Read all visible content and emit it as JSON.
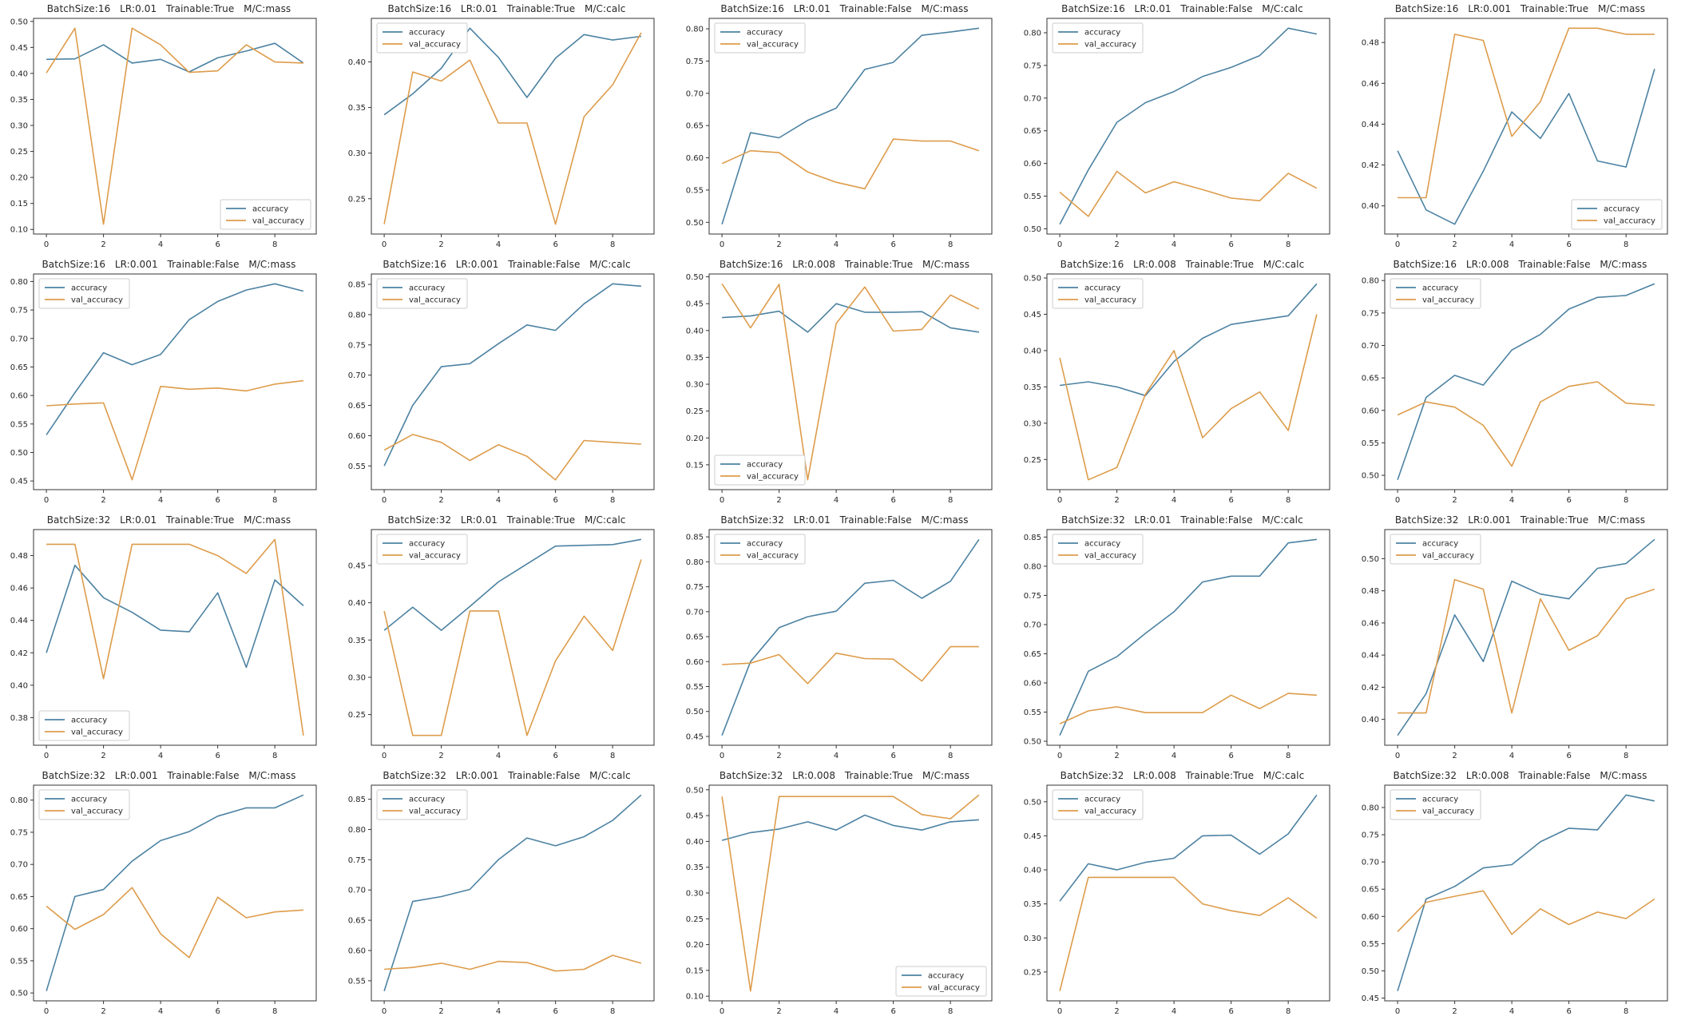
{
  "figure": {
    "legend_labels": [
      "accuracy",
      "val_accuracy"
    ],
    "colors": {
      "accuracy": "#4c82a2",
      "val_accuracy": "#dd9c4b",
      "spine": "#333333"
    },
    "x_ticks": [
      0,
      2,
      4,
      6,
      8
    ]
  },
  "chart_data": [
    {
      "type": "line",
      "title": "BatchSize:16   LR:0.01   Trainable:True   M/C:mass",
      "legend": "lower-right",
      "x": [
        0,
        1,
        2,
        3,
        4,
        5,
        6,
        7,
        8,
        9
      ],
      "yticks": [
        0.1,
        0.15,
        0.2,
        0.25,
        0.3,
        0.35,
        0.4,
        0.45,
        0.5
      ],
      "series": [
        {
          "name": "accuracy",
          "values": [
            0.427,
            0.428,
            0.455,
            0.42,
            0.427,
            0.403,
            0.43,
            0.443,
            0.458,
            0.42
          ]
        },
        {
          "name": "val_accuracy",
          "values": [
            0.401,
            0.487,
            0.11,
            0.487,
            0.455,
            0.402,
            0.405,
            0.455,
            0.422,
            0.42
          ]
        }
      ]
    },
    {
      "type": "line",
      "title": "BatchSize:16   LR:0.01   Trainable:True   M/C:calc",
      "legend": "upper-left",
      "x": [
        0,
        1,
        2,
        3,
        4,
        5,
        6,
        7,
        8,
        9
      ],
      "yticks": [
        0.25,
        0.3,
        0.35,
        0.4
      ],
      "series": [
        {
          "name": "accuracy",
          "values": [
            0.342,
            0.365,
            0.393,
            0.437,
            0.405,
            0.361,
            0.404,
            0.43,
            0.424,
            0.428
          ]
        },
        {
          "name": "val_accuracy",
          "values": [
            0.222,
            0.389,
            0.379,
            0.402,
            0.333,
            0.333,
            0.222,
            0.34,
            0.375,
            0.432
          ]
        }
      ]
    },
    {
      "type": "line",
      "title": "BatchSize:16   LR:0.01   Trainable:False   M/C:mass",
      "legend": "upper-left",
      "x": [
        0,
        1,
        2,
        3,
        4,
        5,
        6,
        7,
        8,
        9
      ],
      "yticks": [
        0.5,
        0.55,
        0.6,
        0.65,
        0.7,
        0.75,
        0.8
      ],
      "series": [
        {
          "name": "accuracy",
          "values": [
            0.497,
            0.639,
            0.631,
            0.658,
            0.677,
            0.737,
            0.748,
            0.79,
            0.795,
            0.801
          ]
        },
        {
          "name": "val_accuracy",
          "values": [
            0.591,
            0.611,
            0.608,
            0.578,
            0.562,
            0.552,
            0.629,
            0.626,
            0.626,
            0.611
          ]
        }
      ]
    },
    {
      "type": "line",
      "title": "BatchSize:16   LR:0.01   Trainable:False   M/C:calc",
      "legend": "upper-left",
      "x": [
        0,
        1,
        2,
        3,
        4,
        5,
        6,
        7,
        8,
        9
      ],
      "yticks": [
        0.5,
        0.55,
        0.6,
        0.65,
        0.7,
        0.75,
        0.8
      ],
      "series": [
        {
          "name": "accuracy",
          "values": [
            0.507,
            0.59,
            0.663,
            0.693,
            0.71,
            0.733,
            0.747,
            0.765,
            0.807,
            0.798
          ]
        },
        {
          "name": "val_accuracy",
          "values": [
            0.556,
            0.519,
            0.588,
            0.555,
            0.572,
            0.56,
            0.547,
            0.543,
            0.585,
            0.562
          ]
        }
      ]
    },
    {
      "type": "line",
      "title": "BatchSize:16   LR:0.001   Trainable:True   M/C:mass",
      "legend": "lower-right",
      "x": [
        0,
        1,
        2,
        3,
        4,
        5,
        6,
        7,
        8,
        9
      ],
      "yticks": [
        0.4,
        0.42,
        0.44,
        0.46,
        0.48
      ],
      "series": [
        {
          "name": "accuracy",
          "values": [
            0.427,
            0.398,
            0.391,
            0.417,
            0.446,
            0.433,
            0.455,
            0.422,
            0.419,
            0.467
          ]
        },
        {
          "name": "val_accuracy",
          "values": [
            0.404,
            0.404,
            0.484,
            0.481,
            0.434,
            0.451,
            0.487,
            0.487,
            0.484,
            0.484
          ]
        }
      ]
    },
    {
      "type": "line",
      "title": "BatchSize:16   LR:0.001   Trainable:False   M/C:mass",
      "legend": "upper-left",
      "x": [
        0,
        1,
        2,
        3,
        4,
        5,
        6,
        7,
        8,
        9
      ],
      "yticks": [
        0.45,
        0.5,
        0.55,
        0.6,
        0.65,
        0.7,
        0.75,
        0.8
      ],
      "series": [
        {
          "name": "accuracy",
          "values": [
            0.531,
            0.605,
            0.675,
            0.654,
            0.672,
            0.733,
            0.765,
            0.785,
            0.796,
            0.783
          ]
        },
        {
          "name": "val_accuracy",
          "values": [
            0.582,
            0.585,
            0.587,
            0.452,
            0.616,
            0.611,
            0.613,
            0.608,
            0.62,
            0.626
          ]
        }
      ]
    },
    {
      "type": "line",
      "title": "BatchSize:16   LR:0.001   Trainable:False   M/C:calc",
      "legend": "upper-left",
      "x": [
        0,
        1,
        2,
        3,
        4,
        5,
        6,
        7,
        8,
        9
      ],
      "yticks": [
        0.55,
        0.6,
        0.65,
        0.7,
        0.75,
        0.8,
        0.85
      ],
      "series": [
        {
          "name": "accuracy",
          "values": [
            0.55,
            0.65,
            0.714,
            0.719,
            0.752,
            0.783,
            0.774,
            0.818,
            0.851,
            0.847
          ]
        },
        {
          "name": "val_accuracy",
          "values": [
            0.576,
            0.602,
            0.589,
            0.559,
            0.585,
            0.566,
            0.527,
            0.592,
            0.589,
            0.586
          ]
        }
      ]
    },
    {
      "type": "line",
      "title": "BatchSize:16   LR:0.008   Trainable:True   M/C:mass",
      "legend": "lower-left",
      "x": [
        0,
        1,
        2,
        3,
        4,
        5,
        6,
        7,
        8,
        9
      ],
      "yticks": [
        0.15,
        0.2,
        0.25,
        0.3,
        0.35,
        0.4,
        0.45,
        0.5
      ],
      "series": [
        {
          "name": "accuracy",
          "values": [
            0.424,
            0.427,
            0.436,
            0.397,
            0.45,
            0.434,
            0.434,
            0.435,
            0.405,
            0.397
          ]
        },
        {
          "name": "val_accuracy",
          "values": [
            0.487,
            0.405,
            0.486,
            0.122,
            0.413,
            0.481,
            0.399,
            0.402,
            0.466,
            0.44
          ]
        }
      ]
    },
    {
      "type": "line",
      "title": "BatchSize:16   LR:0.008   Trainable:True   M/C:calc",
      "legend": "upper-left",
      "x": [
        0,
        1,
        2,
        3,
        4,
        5,
        6,
        7,
        8,
        9
      ],
      "yticks": [
        0.25,
        0.3,
        0.35,
        0.4,
        0.45,
        0.5
      ],
      "series": [
        {
          "name": "accuracy",
          "values": [
            0.352,
            0.357,
            0.35,
            0.338,
            0.385,
            0.417,
            0.436,
            0.442,
            0.448,
            0.492
          ]
        },
        {
          "name": "val_accuracy",
          "values": [
            0.39,
            0.222,
            0.239,
            0.34,
            0.4,
            0.28,
            0.32,
            0.343,
            0.29,
            0.45
          ]
        }
      ]
    },
    {
      "type": "line",
      "title": "BatchSize:16   LR:0.008   Trainable:False   M/C:mass",
      "legend": "upper-left",
      "x": [
        0,
        1,
        2,
        3,
        4,
        5,
        6,
        7,
        8,
        9
      ],
      "yticks": [
        0.5,
        0.55,
        0.6,
        0.65,
        0.7,
        0.75,
        0.8
      ],
      "series": [
        {
          "name": "accuracy",
          "values": [
            0.493,
            0.62,
            0.654,
            0.639,
            0.693,
            0.717,
            0.756,
            0.774,
            0.777,
            0.795
          ]
        },
        {
          "name": "val_accuracy",
          "values": [
            0.593,
            0.613,
            0.605,
            0.577,
            0.514,
            0.613,
            0.637,
            0.644,
            0.611,
            0.608
          ]
        }
      ]
    },
    {
      "type": "line",
      "title": "BatchSize:32   LR:0.01   Trainable:True   M/C:mass",
      "legend": "lower-left",
      "x": [
        0,
        1,
        2,
        3,
        4,
        5,
        6,
        7,
        8,
        9
      ],
      "yticks": [
        0.38,
        0.4,
        0.42,
        0.44,
        0.46,
        0.48
      ],
      "series": [
        {
          "name": "accuracy",
          "values": [
            0.42,
            0.474,
            0.454,
            0.445,
            0.434,
            0.433,
            0.457,
            0.411,
            0.465,
            0.449
          ]
        },
        {
          "name": "val_accuracy",
          "values": [
            0.487,
            0.487,
            0.404,
            0.487,
            0.487,
            0.487,
            0.48,
            0.469,
            0.49,
            0.369
          ]
        }
      ]
    },
    {
      "type": "line",
      "title": "BatchSize:32   LR:0.01   Trainable:True   M/C:calc",
      "legend": "upper-left",
      "x": [
        0,
        1,
        2,
        3,
        4,
        5,
        6,
        7,
        8,
        9
      ],
      "yticks": [
        0.25,
        0.3,
        0.35,
        0.4,
        0.45
      ],
      "series": [
        {
          "name": "accuracy",
          "values": [
            0.363,
            0.394,
            0.363,
            0.395,
            0.428,
            0.452,
            0.476,
            0.477,
            0.478,
            0.485
          ]
        },
        {
          "name": "val_accuracy",
          "values": [
            0.389,
            0.222,
            0.222,
            0.389,
            0.389,
            0.222,
            0.322,
            0.382,
            0.336,
            0.458
          ]
        }
      ]
    },
    {
      "type": "line",
      "title": "BatchSize:32   LR:0.01   Trainable:False   M/C:mass",
      "legend": "upper-left",
      "x": [
        0,
        1,
        2,
        3,
        4,
        5,
        6,
        7,
        8,
        9
      ],
      "yticks": [
        0.45,
        0.5,
        0.55,
        0.6,
        0.65,
        0.7,
        0.75,
        0.8,
        0.85
      ],
      "series": [
        {
          "name": "accuracy",
          "values": [
            0.452,
            0.6,
            0.668,
            0.69,
            0.701,
            0.757,
            0.763,
            0.727,
            0.761,
            0.845
          ]
        },
        {
          "name": "val_accuracy",
          "values": [
            0.594,
            0.597,
            0.614,
            0.556,
            0.617,
            0.606,
            0.605,
            0.561,
            0.63,
            0.63
          ]
        }
      ]
    },
    {
      "type": "line",
      "title": "BatchSize:32   LR:0.01   Trainable:False   M/C:calc",
      "legend": "upper-left",
      "x": [
        0,
        1,
        2,
        3,
        4,
        5,
        6,
        7,
        8,
        9
      ],
      "yticks": [
        0.5,
        0.55,
        0.6,
        0.65,
        0.7,
        0.75,
        0.8,
        0.85
      ],
      "series": [
        {
          "name": "accuracy",
          "values": [
            0.51,
            0.62,
            0.645,
            0.685,
            0.722,
            0.773,
            0.783,
            0.783,
            0.84,
            0.846
          ]
        },
        {
          "name": "val_accuracy",
          "values": [
            0.53,
            0.552,
            0.559,
            0.549,
            0.549,
            0.549,
            0.579,
            0.556,
            0.582,
            0.579
          ]
        }
      ]
    },
    {
      "type": "line",
      "title": "BatchSize:32   LR:0.001   Trainable:True   M/C:mass",
      "legend": "upper-left",
      "x": [
        0,
        1,
        2,
        3,
        4,
        5,
        6,
        7,
        8,
        9
      ],
      "yticks": [
        0.4,
        0.42,
        0.44,
        0.46,
        0.48,
        0.5
      ],
      "series": [
        {
          "name": "accuracy",
          "values": [
            0.39,
            0.416,
            0.465,
            0.436,
            0.486,
            0.478,
            0.475,
            0.494,
            0.497,
            0.512
          ]
        },
        {
          "name": "val_accuracy",
          "values": [
            0.404,
            0.404,
            0.487,
            0.481,
            0.404,
            0.475,
            0.443,
            0.452,
            0.475,
            0.481
          ]
        }
      ]
    },
    {
      "type": "line",
      "title": "BatchSize:32   LR:0.001   Trainable:False   M/C:mass",
      "legend": "upper-left",
      "x": [
        0,
        1,
        2,
        3,
        4,
        5,
        6,
        7,
        8,
        9
      ],
      "yticks": [
        0.5,
        0.55,
        0.6,
        0.65,
        0.7,
        0.75,
        0.8
      ],
      "series": [
        {
          "name": "accuracy",
          "values": [
            0.503,
            0.65,
            0.661,
            0.705,
            0.737,
            0.751,
            0.775,
            0.788,
            0.788,
            0.808
          ]
        },
        {
          "name": "val_accuracy",
          "values": [
            0.635,
            0.599,
            0.622,
            0.664,
            0.592,
            0.555,
            0.649,
            0.617,
            0.626,
            0.629
          ]
        }
      ]
    },
    {
      "type": "line",
      "title": "BatchSize:32   LR:0.001   Trainable:False   M/C:calc",
      "legend": "upper-left",
      "x": [
        0,
        1,
        2,
        3,
        4,
        5,
        6,
        7,
        8,
        9
      ],
      "yticks": [
        0.55,
        0.6,
        0.65,
        0.7,
        0.75,
        0.8,
        0.85
      ],
      "series": [
        {
          "name": "accuracy",
          "values": [
            0.533,
            0.681,
            0.689,
            0.701,
            0.75,
            0.786,
            0.773,
            0.788,
            0.815,
            0.857
          ]
        },
        {
          "name": "val_accuracy",
          "values": [
            0.569,
            0.572,
            0.579,
            0.569,
            0.582,
            0.58,
            0.566,
            0.569,
            0.592,
            0.579
          ]
        }
      ]
    },
    {
      "type": "line",
      "title": "BatchSize:32   LR:0.008   Trainable:True   M/C:mass",
      "legend": "lower-right",
      "x": [
        0,
        1,
        2,
        3,
        4,
        5,
        6,
        7,
        8,
        9
      ],
      "yticks": [
        0.1,
        0.15,
        0.2,
        0.25,
        0.3,
        0.35,
        0.4,
        0.45,
        0.5
      ],
      "series": [
        {
          "name": "accuracy",
          "values": [
            0.402,
            0.417,
            0.424,
            0.438,
            0.422,
            0.451,
            0.431,
            0.422,
            0.438,
            0.442
          ]
        },
        {
          "name": "val_accuracy",
          "values": [
            0.487,
            0.11,
            0.487,
            0.487,
            0.487,
            0.487,
            0.487,
            0.452,
            0.444,
            0.49
          ]
        }
      ]
    },
    {
      "type": "line",
      "title": "BatchSize:32   LR:0.008   Trainable:True   M/C:calc",
      "legend": "upper-left",
      "x": [
        0,
        1,
        2,
        3,
        4,
        5,
        6,
        7,
        8,
        9
      ],
      "yticks": [
        0.25,
        0.3,
        0.35,
        0.4,
        0.45,
        0.5
      ],
      "series": [
        {
          "name": "accuracy",
          "values": [
            0.354,
            0.409,
            0.4,
            0.411,
            0.417,
            0.45,
            0.451,
            0.423,
            0.453,
            0.51
          ]
        },
        {
          "name": "val_accuracy",
          "values": [
            0.222,
            0.389,
            0.389,
            0.389,
            0.389,
            0.35,
            0.34,
            0.333,
            0.359,
            0.329
          ]
        }
      ]
    },
    {
      "type": "line",
      "title": "BatchSize:32   LR:0.008   Trainable:False   M/C:mass",
      "legend": "upper-left",
      "x": [
        0,
        1,
        2,
        3,
        4,
        5,
        6,
        7,
        8,
        9
      ],
      "yticks": [
        0.45,
        0.5,
        0.55,
        0.6,
        0.65,
        0.7,
        0.75,
        0.8
      ],
      "series": [
        {
          "name": "accuracy",
          "values": [
            0.463,
            0.632,
            0.655,
            0.689,
            0.695,
            0.737,
            0.762,
            0.759,
            0.823,
            0.812
          ]
        },
        {
          "name": "val_accuracy",
          "values": [
            0.572,
            0.626,
            0.637,
            0.647,
            0.567,
            0.614,
            0.585,
            0.608,
            0.596,
            0.632
          ]
        }
      ]
    }
  ]
}
